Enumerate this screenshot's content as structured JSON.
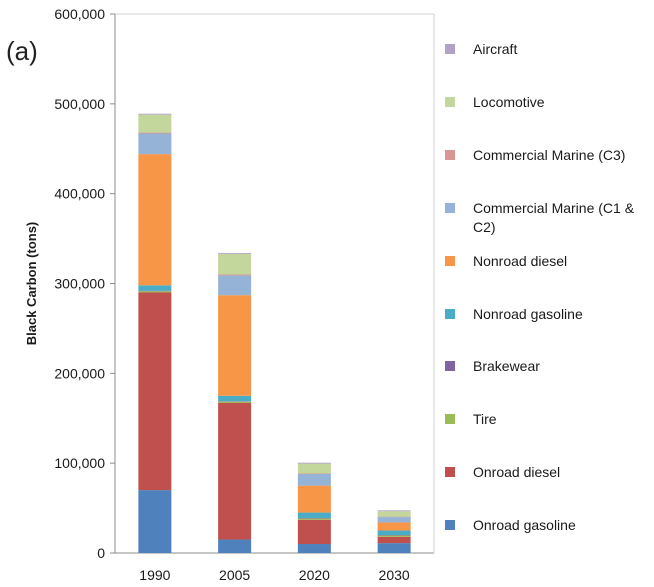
{
  "panel_label": "(a)",
  "chart_data": {
    "type": "bar",
    "stacked": true,
    "categories": [
      "1990",
      "2005",
      "2020",
      "2030"
    ],
    "ylabel": "Black Carbon (tons)",
    "xlabel": "",
    "ylim": [
      0,
      600000
    ],
    "yticks": [
      "0",
      "100,000",
      "200,000",
      "300,000",
      "400,000",
      "500,000",
      "600,000"
    ],
    "grid": false,
    "legend_position": "right",
    "series": [
      {
        "name": "Onroad gasoline",
        "color": "#4F81BD",
        "values": [
          70000,
          15000,
          10000,
          11000
        ]
      },
      {
        "name": "Onroad diesel",
        "color": "#C0504D",
        "values": [
          220000,
          152000,
          27000,
          7000
        ]
      },
      {
        "name": "Tire",
        "color": "#9BBB59",
        "values": [
          1500,
          1500,
          1500,
          1500
        ]
      },
      {
        "name": "Brakewear",
        "color": "#8064A2",
        "values": [
          500,
          500,
          500,
          500
        ]
      },
      {
        "name": "Nonroad gasoline",
        "color": "#4BACC6",
        "values": [
          6000,
          6000,
          6000,
          5000
        ]
      },
      {
        "name": "Nonroad diesel",
        "color": "#F79646",
        "values": [
          146000,
          112000,
          30000,
          9000
        ]
      },
      {
        "name": "Commercial Marine (C1 & C2)",
        "color": "#95B3D7",
        "values": [
          23000,
          22000,
          13000,
          6000
        ]
      },
      {
        "name": "Commercial Marine (C3)",
        "color": "#D99694",
        "values": [
          1000,
          1000,
          500,
          500
        ]
      },
      {
        "name": "Locomotive",
        "color": "#C3D69B",
        "values": [
          20000,
          23000,
          11000,
          6000
        ]
      },
      {
        "name": "Aircraft",
        "color": "#B3A2C7",
        "values": [
          1000,
          1000,
          1000,
          1000
        ]
      }
    ]
  }
}
